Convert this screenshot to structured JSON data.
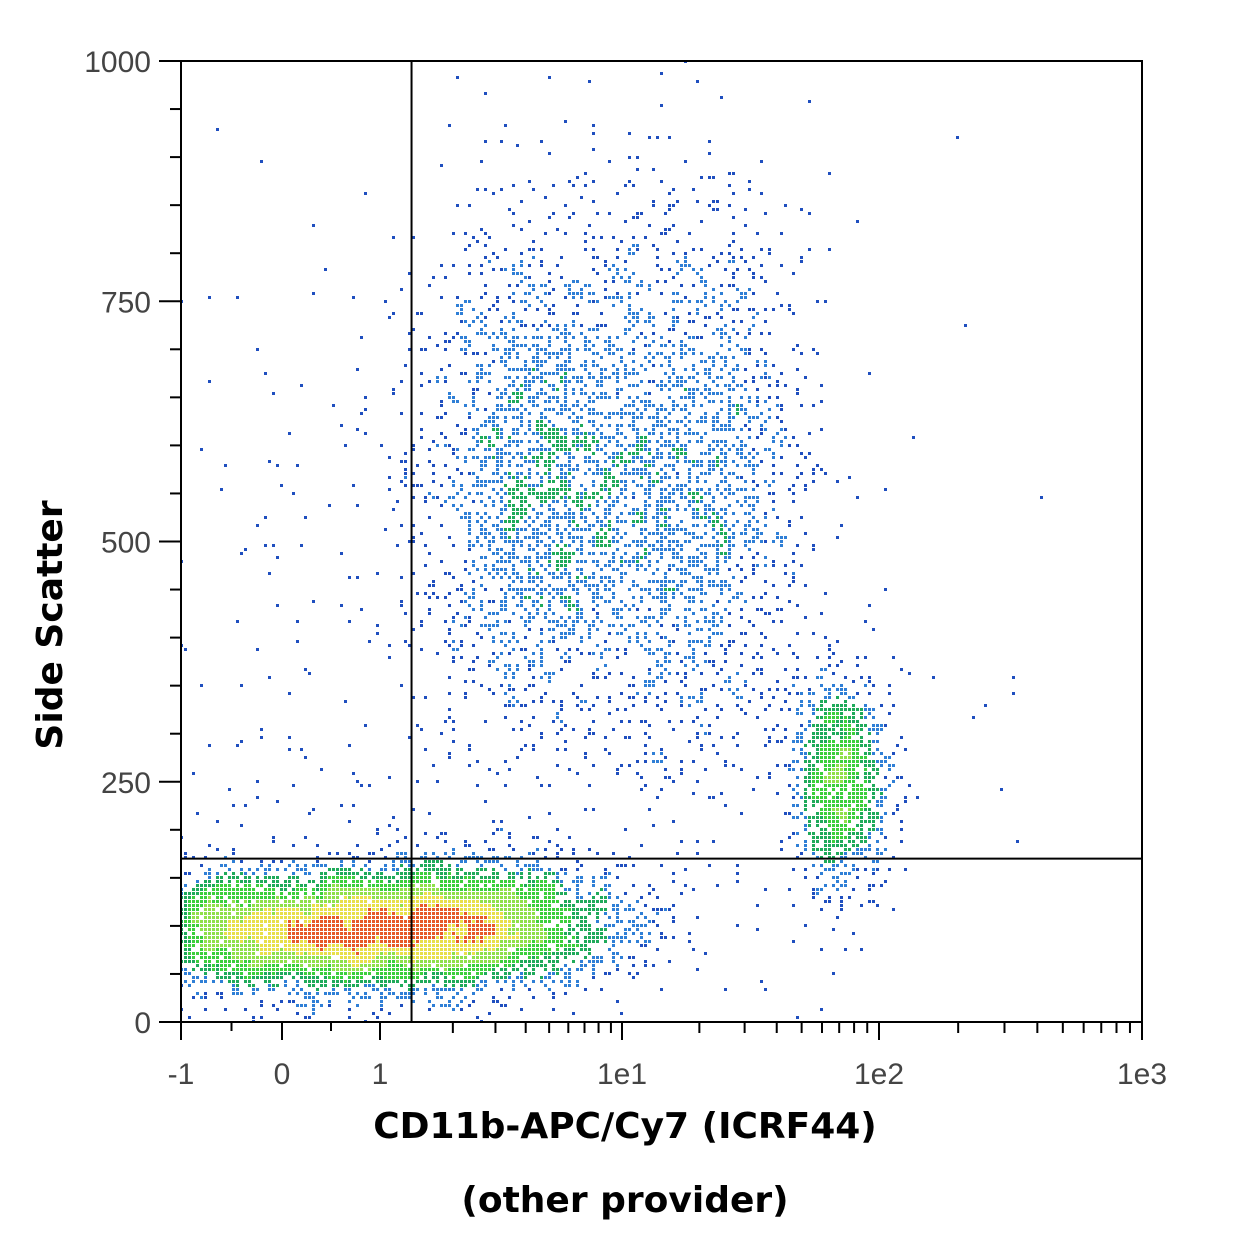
{
  "chart_data": {
    "type": "scatter",
    "subtype": "flow-cytometry-density-dot-plot",
    "title": "",
    "xlabel": "CD11b-APC/Cy7 (ICRF44)",
    "xlabel_line2": "(other provider)",
    "ylabel": "Side Scatter",
    "x_scale": "biexponential",
    "x_ticks": [
      {
        "value": -1,
        "label": "-1"
      },
      {
        "value": 0,
        "label": "0"
      },
      {
        "value": 1,
        "label": "1"
      },
      {
        "value": 10,
        "label": "1e1"
      },
      {
        "value": 100,
        "label": "1e2"
      },
      {
        "value": 1000,
        "label": "1e3"
      }
    ],
    "y_ticks": [
      {
        "value": 0,
        "label": "0"
      },
      {
        "value": 250,
        "label": "250"
      },
      {
        "value": 500,
        "label": "500"
      },
      {
        "value": 750,
        "label": "750"
      },
      {
        "value": 1000,
        "label": "1000"
      }
    ],
    "xlim": [
      -1,
      1000
    ],
    "ylim": [
      0,
      1000
    ],
    "grid": false,
    "legend": "none",
    "quadrant_gate": {
      "x": 1.35,
      "y": 170
    },
    "density_colors": [
      "#1f4fbf",
      "#2f7fd6",
      "#1faa5a",
      "#3ccf3c",
      "#8fe04a",
      "#e8e04a",
      "#e65a28"
    ],
    "populations": [
      {
        "center_x": 0.5,
        "center_y": 95,
        "spread_x_decades": 1.0,
        "spread_y": 30,
        "count": 7000
      },
      {
        "center_x": 2.5,
        "center_y": 105,
        "spread_x_decades": 0.6,
        "spread_y": 32,
        "count": 2200
      },
      {
        "center_x": 5,
        "center_y": 570,
        "spread_x_decades": 0.55,
        "spread_y": 130,
        "count": 2600
      },
      {
        "center_x": 20,
        "center_y": 560,
        "spread_x_decades": 0.45,
        "spread_y": 140,
        "count": 1700
      },
      {
        "center_x": 70,
        "center_y": 250,
        "spread_x_decades": 0.2,
        "spread_y": 55,
        "count": 1300
      },
      {
        "center_x": 1.5,
        "center_y": 360,
        "spread_x_decades": 2.2,
        "spread_y": 290,
        "count": 500
      }
    ]
  }
}
